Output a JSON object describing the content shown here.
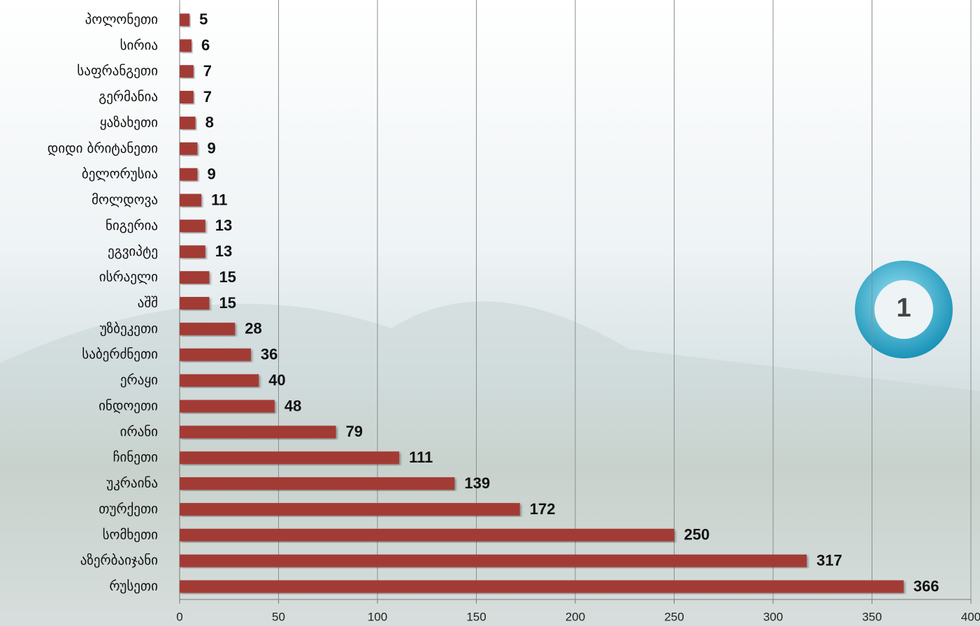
{
  "chart_data": {
    "type": "barh",
    "categories": [
      "პოლონეთი",
      "სირია",
      "საფრანგეთი",
      "გერმანია",
      "ყაზახეთი",
      "დიდი ბრიტანეთი",
      "ბელორუსია",
      "მოლდოვა",
      "ნიგერია",
      "ეგვიპტე",
      "ისრაელი",
      "აშშ",
      "უზბეკეთი",
      "საბერძნეთი",
      "ერაყი",
      "ინდოეთი",
      "ირანი",
      "ჩინეთი",
      "უკრაინა",
      "თურქეთი",
      "სომხეთი",
      "აზერბაიჯანი",
      "რუსეთი"
    ],
    "values": [
      5,
      6,
      7,
      7,
      8,
      9,
      9,
      11,
      13,
      13,
      15,
      15,
      28,
      36,
      40,
      48,
      79,
      111,
      139,
      172,
      250,
      317,
      366
    ],
    "color": "#a33a36",
    "xlim": [
      0,
      400
    ],
    "xticks": [
      0,
      50,
      100,
      150,
      200,
      250,
      300,
      350,
      400
    ],
    "grid": true
  },
  "badge": {
    "label": "1"
  }
}
